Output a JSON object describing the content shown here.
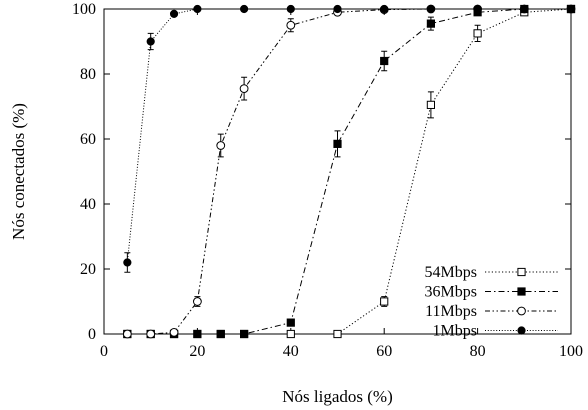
{
  "chart_data": {
    "type": "line",
    "title": "",
    "xlabel": "Nós ligados (%)",
    "ylabel": "Nós conectados (%)",
    "xlim": [
      0,
      100
    ],
    "ylim": [
      0,
      100
    ],
    "xticks": [
      "0",
      "20",
      "40",
      "60",
      "80",
      "100"
    ],
    "yticks": [
      "0",
      "20",
      "40",
      "60",
      "80",
      "100"
    ],
    "grid": false,
    "legend_position": "bottom-right",
    "series": [
      {
        "name": "54Mbps",
        "marker": "open-square",
        "line": "dotted",
        "x": [
          5,
          10,
          15,
          20,
          25,
          30,
          40,
          50,
          60,
          70,
          80,
          90,
          100
        ],
        "y": [
          0,
          0,
          0,
          0,
          0,
          0,
          0,
          0,
          10,
          70.5,
          92.5,
          99,
          100
        ],
        "err": [
          0,
          0,
          0,
          0,
          0,
          0,
          0,
          0,
          1.5,
          4,
          2.5,
          1,
          0
        ]
      },
      {
        "name": "36Mbps",
        "marker": "filled-square",
        "line": "dashdot",
        "x": [
          5,
          10,
          15,
          20,
          25,
          30,
          40,
          50,
          60,
          70,
          80,
          90,
          100
        ],
        "y": [
          0,
          0,
          0,
          0,
          0,
          0,
          3.5,
          58.5,
          84,
          95.5,
          99,
          100,
          100
        ],
        "err": [
          0,
          0,
          0,
          0,
          0,
          0,
          0.5,
          4,
          3,
          2,
          0.5,
          0,
          0
        ]
      },
      {
        "name": "11Mbps",
        "marker": "open-circle",
        "line": "dashdotdot",
        "x": [
          5,
          10,
          15,
          20,
          25,
          30,
          40,
          50,
          60,
          70,
          80,
          90,
          100
        ],
        "y": [
          0,
          0,
          0.5,
          10,
          58,
          75.5,
          95,
          99,
          99.8,
          100,
          100,
          100,
          100
        ],
        "err": [
          0,
          0,
          0,
          1.5,
          3.5,
          3.5,
          2,
          0.5,
          0,
          0,
          0,
          0,
          0
        ]
      },
      {
        "name": "1Mbps",
        "marker": "filled-circle",
        "line": "dotted-fine",
        "x": [
          5,
          10,
          15,
          20,
          30,
          40,
          50,
          60,
          70,
          80,
          90,
          100
        ],
        "y": [
          22,
          90,
          98.5,
          100,
          100,
          100,
          100,
          100,
          100,
          100,
          100,
          100
        ],
        "err": [
          3,
          2.5,
          0.5,
          0,
          0,
          0,
          0,
          0,
          0,
          0,
          0,
          0
        ]
      }
    ]
  }
}
